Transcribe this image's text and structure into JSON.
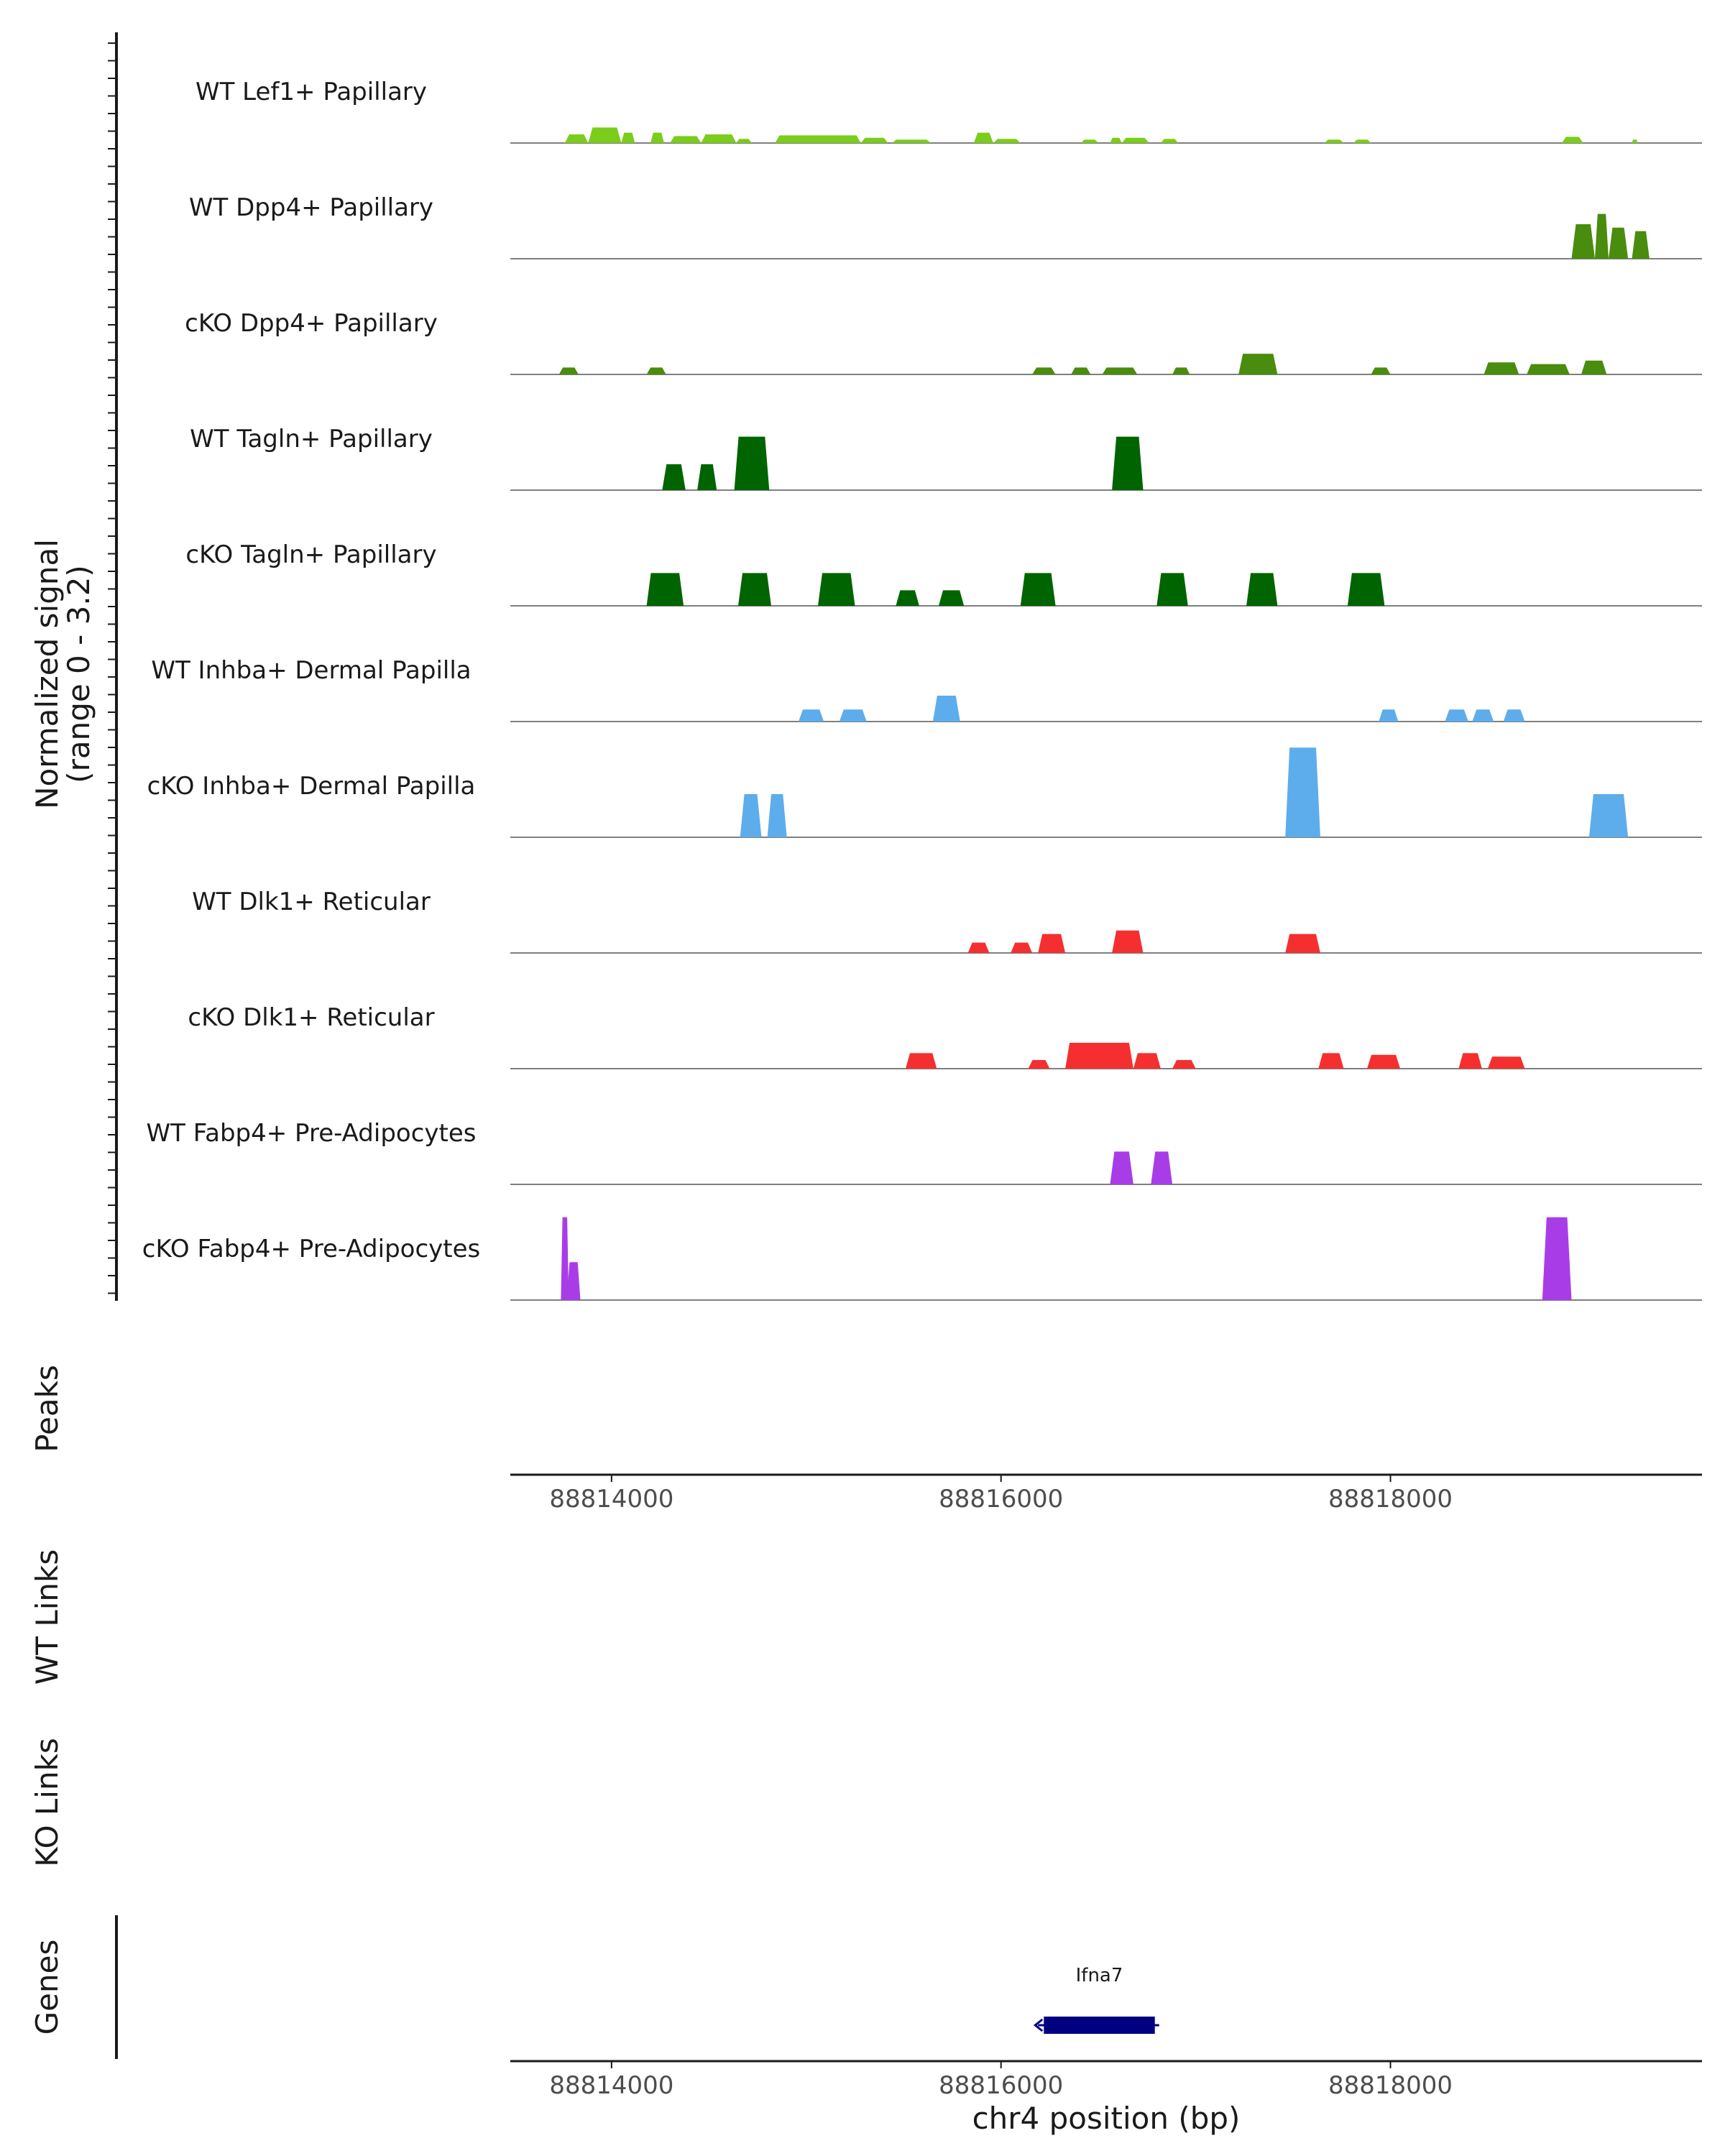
{
  "chart_data": {
    "type": "area",
    "chromosome": "chr4",
    "xlabel": "chr4 position (bp)",
    "xlim": [
      88813480,
      88819600
    ],
    "xticks": [
      88814000,
      88816000,
      88818000
    ],
    "xtick_labels": [
      "88814000",
      "88816000",
      "88818000"
    ],
    "ylabel_line1": "Normalized signal",
    "ylabel_line2": "(range 0 - 3.2)",
    "ylim": [
      0,
      3.2
    ],
    "peaks_label": "Peaks",
    "wt_links_label": "WT Links",
    "ko_links_label": "KO Links",
    "genes_label": "Genes",
    "colors": {
      "lef1": "#7ACD1A",
      "dpp4": "#4A8C0D",
      "tagln": "#006400",
      "inhba": "#5DADEC",
      "dlk1": "#F52F2F",
      "fabp4": "#A83DE8",
      "gene": "#000080",
      "baseline": "#7f7f7f",
      "axis": "#1a1a1a"
    },
    "tracks": [
      {
        "name": "WT Lef1+ Papillary",
        "color_key": "lef1",
        "peaks": [
          [
            88813760,
            88813880,
            0.25
          ],
          [
            88813880,
            88814050,
            0.45
          ],
          [
            88814050,
            88814120,
            0.3
          ],
          [
            88814200,
            88814270,
            0.3
          ],
          [
            88814300,
            88814460,
            0.2
          ],
          [
            88814460,
            88814640,
            0.25
          ],
          [
            88814640,
            88814720,
            0.12
          ],
          [
            88814840,
            88815280,
            0.22
          ],
          [
            88815280,
            88815420,
            0.15
          ],
          [
            88815440,
            88815640,
            0.1
          ],
          [
            88815860,
            88815960,
            0.3
          ],
          [
            88815960,
            88816100,
            0.12
          ],
          [
            88816410,
            88816500,
            0.1
          ],
          [
            88816560,
            88816620,
            0.15
          ],
          [
            88816620,
            88816760,
            0.15
          ],
          [
            88816820,
            88816910,
            0.12
          ],
          [
            88817660,
            88817760,
            0.1
          ],
          [
            88817810,
            88817900,
            0.1
          ],
          [
            88818880,
            88818990,
            0.18
          ],
          [
            88819240,
            88819270,
            0.1
          ]
        ]
      },
      {
        "name": "WT Dpp4+ Papillary",
        "color_key": "dpp4",
        "peaks": [
          [
            88818930,
            88819050,
            1.0
          ],
          [
            88819050,
            88819120,
            1.3
          ],
          [
            88819120,
            88819220,
            0.9
          ],
          [
            88819240,
            88819330,
            0.8
          ]
        ]
      },
      {
        "name": "cKO Dpp4+ Papillary",
        "color_key": "dpp4",
        "peaks": [
          [
            88813730,
            88813830,
            0.2
          ],
          [
            88814180,
            88814280,
            0.2
          ],
          [
            88816160,
            88816280,
            0.2
          ],
          [
            88816360,
            88816460,
            0.2
          ],
          [
            88816520,
            88816700,
            0.2
          ],
          [
            88816880,
            88816970,
            0.2
          ],
          [
            88817220,
            88817420,
            0.6
          ],
          [
            88817900,
            88818000,
            0.2
          ],
          [
            88818480,
            88818660,
            0.35
          ],
          [
            88818700,
            88818920,
            0.3
          ],
          [
            88818980,
            88819110,
            0.4
          ]
        ]
      },
      {
        "name": "WT Tagln+ Papillary",
        "color_key": "tagln",
        "peaks": [
          [
            88814260,
            88814380,
            0.75
          ],
          [
            88814440,
            88814540,
            0.75
          ],
          [
            88814630,
            88814810,
            1.55
          ],
          [
            88816570,
            88816730,
            1.55
          ]
        ]
      },
      {
        "name": "cKO Tagln+ Papillary",
        "color_key": "tagln",
        "peaks": [
          [
            88814180,
            88814370,
            0.95
          ],
          [
            88814650,
            88814820,
            0.95
          ],
          [
            88815060,
            88815250,
            0.95
          ],
          [
            88815460,
            88815580,
            0.45
          ],
          [
            88815680,
            88815810,
            0.45
          ],
          [
            88816100,
            88816280,
            0.95
          ],
          [
            88816800,
            88816960,
            0.95
          ],
          [
            88817260,
            88817420,
            0.95
          ],
          [
            88817780,
            88817970,
            0.95
          ]
        ]
      },
      {
        "name": "WT Inhba+ Dermal Papilla",
        "color_key": "inhba",
        "peaks": [
          [
            88814960,
            88815090,
            0.35
          ],
          [
            88815170,
            88815310,
            0.35
          ],
          [
            88815650,
            88815790,
            0.75
          ],
          [
            88817940,
            88818040,
            0.35
          ],
          [
            88818280,
            88818400,
            0.35
          ],
          [
            88818420,
            88818530,
            0.35
          ],
          [
            88818580,
            88818690,
            0.35
          ]
        ]
      },
      {
        "name": "cKO Inhba+ Dermal Papilla",
        "color_key": "inhba",
        "peaks": [
          [
            88814660,
            88814770,
            1.25
          ],
          [
            88814800,
            88814900,
            1.25
          ],
          [
            88817460,
            88817640,
            2.6
          ],
          [
            88819020,
            88819220,
            1.25
          ]
        ]
      },
      {
        "name": "WT Dlk1+ Reticular",
        "color_key": "dlk1",
        "peaks": [
          [
            88815830,
            88815940,
            0.3
          ],
          [
            88816050,
            88816160,
            0.3
          ],
          [
            88816190,
            88816330,
            0.55
          ],
          [
            88816570,
            88816730,
            0.65
          ],
          [
            88817460,
            88817640,
            0.55
          ]
        ]
      },
      {
        "name": "cKO Dlk1+ Reticular",
        "color_key": "dlk1",
        "peaks": [
          [
            88815510,
            88815670,
            0.45
          ],
          [
            88816140,
            88816250,
            0.25
          ],
          [
            88816330,
            88816680,
            0.75
          ],
          [
            88816680,
            88816820,
            0.45
          ],
          [
            88816880,
            88817000,
            0.25
          ],
          [
            88817630,
            88817760,
            0.45
          ],
          [
            88817880,
            88818050,
            0.4
          ],
          [
            88818350,
            88818470,
            0.45
          ],
          [
            88818500,
            88818690,
            0.35
          ]
        ]
      },
      {
        "name": "WT Fabp4+ Pre-Adipocytes",
        "color_key": "fabp4",
        "peaks": [
          [
            88816560,
            88816680,
            0.95
          ],
          [
            88816770,
            88816880,
            0.95
          ]
        ]
      },
      {
        "name": "cKO Fabp4+ Pre-Adipocytes",
        "color_key": "fabp4",
        "peaks": [
          [
            88813740,
            88813780,
            2.4
          ],
          [
            88813770,
            88813840,
            1.1
          ],
          [
            88818780,
            88818930,
            2.4
          ]
        ]
      }
    ],
    "genes": [
      {
        "name": "Ifna7",
        "start": 88816220,
        "end": 88816790,
        "strand": "-"
      }
    ]
  }
}
